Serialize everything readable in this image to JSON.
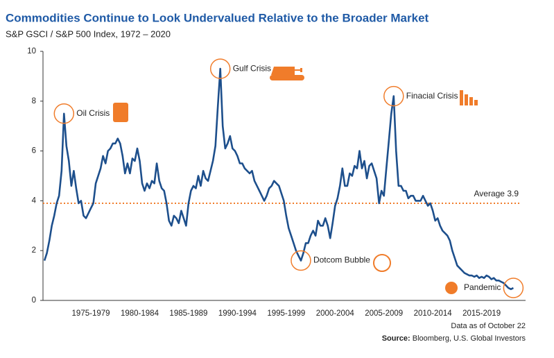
{
  "chart_data": {
    "type": "line",
    "title": "Commodities Continue to Look Undervalued Relative to the Broader Market",
    "subtitle": "S&P GSCI / S&P 500 Index, 1972 – 2020",
    "note": "Data as of October 22",
    "source_label": "Source:",
    "source": "Bloomberg, U.S. Global Investors",
    "xlim": [
      1972.6,
      2022
    ],
    "ylim": [
      0,
      10
    ],
    "yticks": [
      0,
      2,
      4,
      6,
      8,
      10
    ],
    "xticks": [
      {
        "value": 1977.5,
        "label": "1975-1979"
      },
      {
        "value": 1982.5,
        "label": "1980-1984"
      },
      {
        "value": 1987.5,
        "label": "1985-1989"
      },
      {
        "value": 1992.5,
        "label": "1990-1994"
      },
      {
        "value": 1997.5,
        "label": "1995-1999"
      },
      {
        "value": 2002.5,
        "label": "2000-2004"
      },
      {
        "value": 2007.5,
        "label": "2005-2009"
      },
      {
        "value": 2012.5,
        "label": "2010-2014"
      },
      {
        "value": 2017.5,
        "label": "2015-2019"
      }
    ],
    "grid": false,
    "average": {
      "value": 3.9,
      "label": "Average 3.9",
      "color": "#f07c2a"
    },
    "annotations": [
      {
        "text": "Oil Crisis",
        "x": 1974.75,
        "y": 7.5
      },
      {
        "text": "Gulf Crisis",
        "x": 1990.75,
        "y": 9.3
      },
      {
        "text": "Finacial Crisis",
        "x": 2008.5,
        "y": 8.2
      },
      {
        "text": "Dotcom Bubble",
        "x": 1999,
        "y": 1.6
      },
      {
        "text": "Pandemic",
        "x": 2020.75,
        "y": 0.5
      }
    ],
    "x": [
      1972.75,
      1973,
      1973.25,
      1973.5,
      1973.75,
      1974,
      1974.25,
      1974.5,
      1974.75,
      1975,
      1975.25,
      1975.5,
      1975.75,
      1976,
      1976.25,
      1976.5,
      1976.75,
      1977,
      1977.25,
      1977.5,
      1977.75,
      1978,
      1978.25,
      1978.5,
      1978.75,
      1979,
      1979.25,
      1979.5,
      1979.75,
      1980,
      1980.25,
      1980.5,
      1980.75,
      1981,
      1981.25,
      1981.5,
      1981.75,
      1982,
      1982.25,
      1982.5,
      1982.75,
      1983,
      1983.25,
      1983.5,
      1983.75,
      1984,
      1984.25,
      1984.5,
      1984.75,
      1985,
      1985.25,
      1985.5,
      1985.75,
      1986,
      1986.25,
      1986.5,
      1986.75,
      1987,
      1987.25,
      1987.5,
      1987.75,
      1988,
      1988.25,
      1988.5,
      1988.75,
      1989,
      1989.25,
      1989.5,
      1989.75,
      1990,
      1990.25,
      1990.5,
      1990.75,
      1991,
      1991.25,
      1991.5,
      1991.75,
      1992,
      1992.25,
      1992.5,
      1992.75,
      1993,
      1993.25,
      1993.5,
      1993.75,
      1994,
      1994.25,
      1994.5,
      1994.75,
      1995,
      1995.25,
      1995.5,
      1995.75,
      1996,
      1996.25,
      1996.5,
      1996.75,
      1997,
      1997.25,
      1997.5,
      1997.75,
      1998,
      1998.25,
      1998.5,
      1998.75,
      1999,
      1999.25,
      1999.5,
      1999.75,
      2000,
      2000.25,
      2000.5,
      2000.75,
      2001,
      2001.25,
      2001.5,
      2001.75,
      2002,
      2002.25,
      2002.5,
      2002.75,
      2003,
      2003.25,
      2003.5,
      2003.75,
      2004,
      2004.25,
      2004.5,
      2004.75,
      2005,
      2005.25,
      2005.5,
      2005.75,
      2006,
      2006.25,
      2006.5,
      2006.75,
      2007,
      2007.25,
      2007.5,
      2007.75,
      2008,
      2008.25,
      2008.5,
      2008.75,
      2009,
      2009.25,
      2009.5,
      2009.75,
      2010,
      2010.25,
      2010.5,
      2010.75,
      2011,
      2011.25,
      2011.5,
      2011.75,
      2012,
      2012.25,
      2012.5,
      2012.75,
      2013,
      2013.25,
      2013.5,
      2013.75,
      2014,
      2014.25,
      2014.5,
      2014.75,
      2015,
      2015.25,
      2015.5,
      2015.75,
      2016,
      2016.25,
      2016.5,
      2016.75,
      2017,
      2017.25,
      2017.5,
      2017.75,
      2018,
      2018.25,
      2018.5,
      2018.75,
      2019,
      2019.25,
      2019.5,
      2019.75,
      2020,
      2020.25,
      2020.5,
      2020.75
    ],
    "series": [
      {
        "color": "#1d4f8c",
        "values": [
          1.6,
          1.9,
          2.4,
          3.0,
          3.4,
          3.9,
          4.2,
          5.2,
          7.5,
          6.2,
          5.6,
          4.6,
          5.2,
          4.5,
          3.9,
          4.0,
          3.4,
          3.3,
          3.5,
          3.7,
          3.9,
          4.7,
          5.0,
          5.3,
          5.8,
          5.5,
          6.0,
          6.1,
          6.3,
          6.3,
          6.5,
          6.3,
          5.8,
          5.1,
          5.5,
          5.1,
          5.7,
          5.6,
          6.1,
          5.6,
          4.7,
          4.4,
          4.7,
          4.5,
          4.8,
          4.7,
          5.5,
          4.8,
          4.5,
          4.4,
          3.9,
          3.2,
          3.0,
          3.4,
          3.3,
          3.1,
          3.6,
          3.3,
          3.0,
          3.9,
          4.4,
          4.6,
          4.5,
          5.0,
          4.6,
          5.2,
          4.9,
          4.8,
          5.2,
          5.6,
          6.2,
          7.8,
          9.3,
          7.0,
          6.1,
          6.3,
          6.6,
          6.1,
          6.0,
          5.8,
          5.5,
          5.5,
          5.3,
          5.2,
          5.1,
          5.2,
          4.8,
          4.6,
          4.4,
          4.2,
          4.0,
          4.2,
          4.5,
          4.6,
          4.8,
          4.7,
          4.6,
          4.3,
          4.0,
          3.4,
          2.9,
          2.6,
          2.3,
          2.0,
          1.8,
          1.6,
          1.9,
          2.3,
          2.3,
          2.6,
          2.8,
          2.6,
          3.2,
          3.0,
          3.0,
          3.3,
          3.0,
          2.5,
          3.1,
          3.8,
          4.1,
          4.6,
          5.3,
          4.6,
          4.6,
          5.1,
          5.0,
          5.4,
          5.3,
          6.0,
          5.3,
          5.6,
          4.9,
          5.4,
          5.5,
          5.2,
          4.9,
          3.9,
          4.4,
          4.2,
          5.3,
          6.4,
          7.5,
          8.2,
          6.0,
          4.6,
          4.6,
          4.4,
          4.4,
          4.1,
          4.2,
          4.2,
          4.0,
          4.0,
          4.0,
          4.2,
          4.0,
          3.8,
          3.9,
          3.6,
          3.2,
          3.3,
          3.0,
          2.8,
          2.7,
          2.6,
          2.4,
          2.0,
          1.7,
          1.4,
          1.3,
          1.2,
          1.1,
          1.05,
          1.0,
          1.0,
          0.95,
          1.0,
          0.9,
          0.95,
          0.9,
          1.0,
          0.95,
          0.85,
          0.9,
          0.8,
          0.8,
          0.75,
          0.7,
          0.6,
          0.5,
          0.45,
          0.5
        ]
      }
    ]
  }
}
